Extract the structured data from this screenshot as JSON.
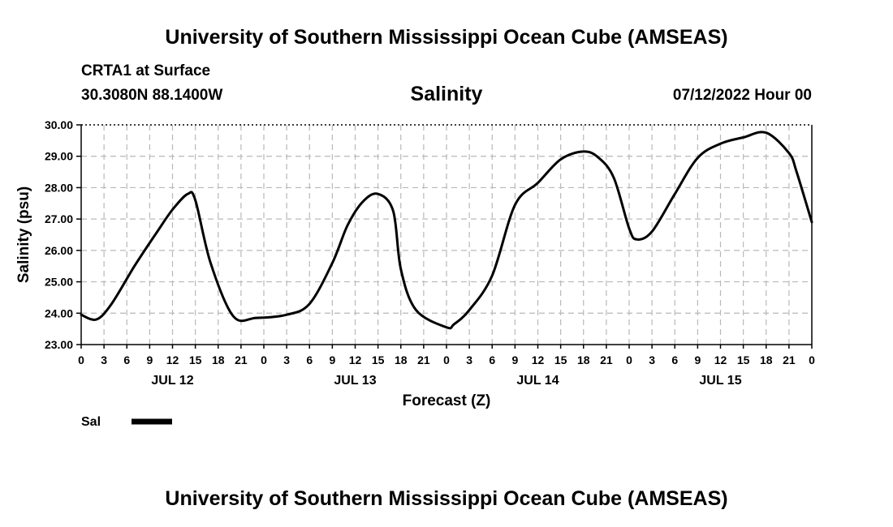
{
  "page": {
    "top_title": "University of Southern Mississippi Ocean Cube (AMSEAS)",
    "bottom_title": "University of Southern Mississippi Ocean Cube (AMSEAS)",
    "station": "CRTA1 at Surface",
    "coords": "30.3080N  88.1400W",
    "plot_title": "Salinity",
    "run_time": "07/12/2022 Hour 00"
  },
  "chart_data": {
    "type": "line",
    "title": "Salinity",
    "xlabel": "Forecast (Z)",
    "ylabel": "Salinity (psu)",
    "ylim": [
      23,
      30
    ],
    "xlim": [
      0,
      96
    ],
    "grid": true,
    "yticks": [
      23,
      24,
      25,
      26,
      27,
      28,
      29,
      30
    ],
    "ytick_labels": [
      "23.00",
      "24.00",
      "25.00",
      "26.00",
      "27.00",
      "28.00",
      "29.00",
      "30.00"
    ],
    "xticks": [
      0,
      3,
      6,
      9,
      12,
      15,
      18,
      21,
      24,
      27,
      30,
      33,
      36,
      39,
      42,
      45,
      48,
      51,
      54,
      57,
      60,
      63,
      66,
      69,
      72,
      75,
      78,
      81,
      84,
      87,
      90,
      93,
      96
    ],
    "xtick_labels": [
      "0",
      "3",
      "6",
      "9",
      "12",
      "15",
      "18",
      "21",
      "0",
      "3",
      "6",
      "9",
      "12",
      "15",
      "18",
      "21",
      "0",
      "3",
      "6",
      "9",
      "12",
      "15",
      "18",
      "21",
      "0",
      "3",
      "6",
      "9",
      "12",
      "15",
      "18",
      "21",
      "0"
    ],
    "day_labels": [
      {
        "label": "JUL 12",
        "hour": 12
      },
      {
        "label": "JUL 13",
        "hour": 36
      },
      {
        "label": "JUL 14",
        "hour": 60
      },
      {
        "label": "JUL 15",
        "hour": 84
      }
    ],
    "legend": {
      "position": "bottom-left",
      "entries": [
        "Sal"
      ]
    },
    "series": [
      {
        "name": "Sal",
        "x": [
          0,
          2,
          4,
          7,
          10,
          12,
          14,
          15,
          17,
          20,
          23,
          27,
          30,
          33,
          35,
          37,
          39,
          41,
          42,
          44,
          48,
          49,
          51,
          54,
          57,
          60,
          63,
          66,
          68,
          70,
          72,
          73,
          75,
          78,
          81,
          84,
          87,
          90,
          93,
          94,
          96
        ],
        "y": [
          23.95,
          23.8,
          24.3,
          25.5,
          26.6,
          27.3,
          27.8,
          27.6,
          25.6,
          23.9,
          23.85,
          23.95,
          24.3,
          25.6,
          26.8,
          27.55,
          27.8,
          27.25,
          25.4,
          24.1,
          23.55,
          23.65,
          24.1,
          25.2,
          27.45,
          28.15,
          28.9,
          29.15,
          28.95,
          28.3,
          26.7,
          26.35,
          26.6,
          27.8,
          28.95,
          29.4,
          29.6,
          29.75,
          29.1,
          28.5,
          26.9
        ]
      }
    ]
  }
}
